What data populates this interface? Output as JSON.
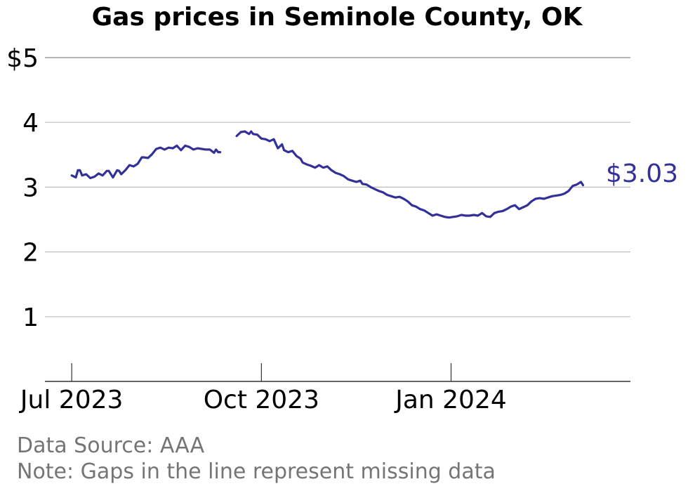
{
  "chart_data": {
    "type": "line",
    "title": "Gas prices in Seminole County, OK",
    "xlabel": "",
    "ylabel": "",
    "ylim": [
      0,
      5
    ],
    "xlim": [
      "2023-06-18",
      "2024-03-28"
    ],
    "y_ticks": [
      {
        "value": 1,
        "label": "1"
      },
      {
        "value": 2,
        "label": "2"
      },
      {
        "value": 3,
        "label": "3"
      },
      {
        "value": 4,
        "label": "4"
      },
      {
        "value": 5,
        "label": "$5"
      }
    ],
    "x_ticks": [
      {
        "value": "2023-07-01",
        "label": "Jul 2023"
      },
      {
        "value": "2023-10-01",
        "label": "Oct 2023"
      },
      {
        "value": "2024-01-01",
        "label": "Jan 2024"
      }
    ],
    "grid": "horizontal",
    "line_color": "#33309a",
    "end_label": "$3.03",
    "series": [
      {
        "segments": [
          [
            [
              "2023-07-01",
              3.18
            ],
            [
              "2023-07-03",
              3.15
            ],
            [
              "2023-07-04",
              3.26
            ],
            [
              "2023-07-05",
              3.26
            ],
            [
              "2023-07-06",
              3.18
            ],
            [
              "2023-07-08",
              3.2
            ],
            [
              "2023-07-10",
              3.14
            ],
            [
              "2023-07-12",
              3.16
            ],
            [
              "2023-07-14",
              3.21
            ],
            [
              "2023-07-16",
              3.18
            ],
            [
              "2023-07-18",
              3.25
            ],
            [
              "2023-07-19",
              3.25
            ],
            [
              "2023-07-21",
              3.15
            ],
            [
              "2023-07-23",
              3.26
            ],
            [
              "2023-07-24",
              3.25
            ],
            [
              "2023-07-25",
              3.2
            ],
            [
              "2023-07-27",
              3.26
            ],
            [
              "2023-07-29",
              3.34
            ],
            [
              "2023-07-31",
              3.32
            ],
            [
              "2023-08-02",
              3.36
            ],
            [
              "2023-08-04",
              3.46
            ],
            [
              "2023-08-05",
              3.46
            ],
            [
              "2023-08-07",
              3.45
            ],
            [
              "2023-08-09",
              3.51
            ],
            [
              "2023-08-11",
              3.59
            ],
            [
              "2023-08-13",
              3.61
            ],
            [
              "2023-08-15",
              3.58
            ],
            [
              "2023-08-17",
              3.61
            ],
            [
              "2023-08-19",
              3.6
            ],
            [
              "2023-08-21",
              3.64
            ],
            [
              "2023-08-23",
              3.57
            ],
            [
              "2023-08-25",
              3.64
            ],
            [
              "2023-08-27",
              3.62
            ],
            [
              "2023-08-29",
              3.58
            ],
            [
              "2023-08-31",
              3.6
            ],
            [
              "2023-09-02",
              3.59
            ],
            [
              "2023-09-04",
              3.58
            ],
            [
              "2023-09-06",
              3.58
            ],
            [
              "2023-09-08",
              3.53
            ],
            [
              "2023-09-09",
              3.58
            ],
            [
              "2023-09-10",
              3.54
            ],
            [
              "2023-09-11",
              3.54
            ]
          ],
          [
            [
              "2023-09-19",
              3.79
            ],
            [
              "2023-09-21",
              3.85
            ],
            [
              "2023-09-23",
              3.86
            ],
            [
              "2023-09-25",
              3.82
            ],
            [
              "2023-09-26",
              3.86
            ],
            [
              "2023-09-27",
              3.82
            ],
            [
              "2023-09-29",
              3.81
            ],
            [
              "2023-10-01",
              3.75
            ],
            [
              "2023-10-03",
              3.74
            ],
            [
              "2023-10-05",
              3.71
            ],
            [
              "2023-10-07",
              3.74
            ],
            [
              "2023-10-09",
              3.6
            ],
            [
              "2023-10-11",
              3.66
            ],
            [
              "2023-10-12",
              3.57
            ],
            [
              "2023-10-14",
              3.54
            ],
            [
              "2023-10-16",
              3.56
            ],
            [
              "2023-10-18",
              3.48
            ],
            [
              "2023-10-20",
              3.44
            ],
            [
              "2023-10-21",
              3.38
            ],
            [
              "2023-10-23",
              3.35
            ],
            [
              "2023-10-25",
              3.33
            ],
            [
              "2023-10-27",
              3.3
            ],
            [
              "2023-10-29",
              3.34
            ],
            [
              "2023-10-31",
              3.3
            ],
            [
              "2023-11-02",
              3.32
            ],
            [
              "2023-11-04",
              3.26
            ],
            [
              "2023-11-06",
              3.22
            ],
            [
              "2023-11-08",
              3.2
            ],
            [
              "2023-11-10",
              3.17
            ],
            [
              "2023-11-12",
              3.12
            ],
            [
              "2023-11-14",
              3.1
            ],
            [
              "2023-11-16",
              3.08
            ],
            [
              "2023-11-18",
              3.1
            ],
            [
              "2023-11-19",
              3.05
            ],
            [
              "2023-11-21",
              3.04
            ],
            [
              "2023-11-23",
              3.0
            ],
            [
              "2023-11-25",
              2.97
            ],
            [
              "2023-11-27",
              2.94
            ],
            [
              "2023-11-29",
              2.92
            ],
            [
              "2023-12-01",
              2.88
            ],
            [
              "2023-12-03",
              2.86
            ],
            [
              "2023-12-05",
              2.84
            ],
            [
              "2023-12-07",
              2.85
            ],
            [
              "2023-12-09",
              2.82
            ],
            [
              "2023-12-11",
              2.78
            ],
            [
              "2023-12-13",
              2.72
            ],
            [
              "2023-12-15",
              2.7
            ],
            [
              "2023-12-17",
              2.66
            ],
            [
              "2023-12-19",
              2.64
            ],
            [
              "2023-12-21",
              2.6
            ],
            [
              "2023-12-23",
              2.56
            ],
            [
              "2023-12-25",
              2.58
            ],
            [
              "2023-12-27",
              2.56
            ],
            [
              "2023-12-29",
              2.54
            ],
            [
              "2023-12-31",
              2.53
            ],
            [
              "2024-01-02",
              2.54
            ],
            [
              "2024-01-04",
              2.55
            ],
            [
              "2024-01-06",
              2.57
            ],
            [
              "2024-01-08",
              2.56
            ],
            [
              "2024-01-10",
              2.56
            ],
            [
              "2024-01-12",
              2.57
            ],
            [
              "2024-01-14",
              2.56
            ],
            [
              "2024-01-16",
              2.6
            ],
            [
              "2024-01-18",
              2.55
            ],
            [
              "2024-01-20",
              2.54
            ],
            [
              "2024-01-22",
              2.6
            ],
            [
              "2024-01-24",
              2.62
            ],
            [
              "2024-01-26",
              2.63
            ],
            [
              "2024-01-28",
              2.66
            ],
            [
              "2024-01-30",
              2.7
            ],
            [
              "2024-02-01",
              2.72
            ],
            [
              "2024-02-03",
              2.66
            ],
            [
              "2024-02-05",
              2.69
            ],
            [
              "2024-02-07",
              2.72
            ],
            [
              "2024-02-09",
              2.78
            ],
            [
              "2024-02-11",
              2.82
            ],
            [
              "2024-02-13",
              2.83
            ],
            [
              "2024-02-15",
              2.82
            ],
            [
              "2024-02-17",
              2.84
            ],
            [
              "2024-02-19",
              2.86
            ],
            [
              "2024-02-21",
              2.87
            ],
            [
              "2024-02-23",
              2.88
            ],
            [
              "2024-02-25",
              2.9
            ],
            [
              "2024-02-27",
              2.94
            ],
            [
              "2024-02-29",
              3.02
            ],
            [
              "2024-03-02",
              3.04
            ],
            [
              "2024-03-04",
              3.08
            ],
            [
              "2024-03-05",
              3.03
            ]
          ]
        ]
      }
    ],
    "notes": [
      "Data Source: AAA",
      "Note: Gaps in the line represent missing data"
    ]
  }
}
